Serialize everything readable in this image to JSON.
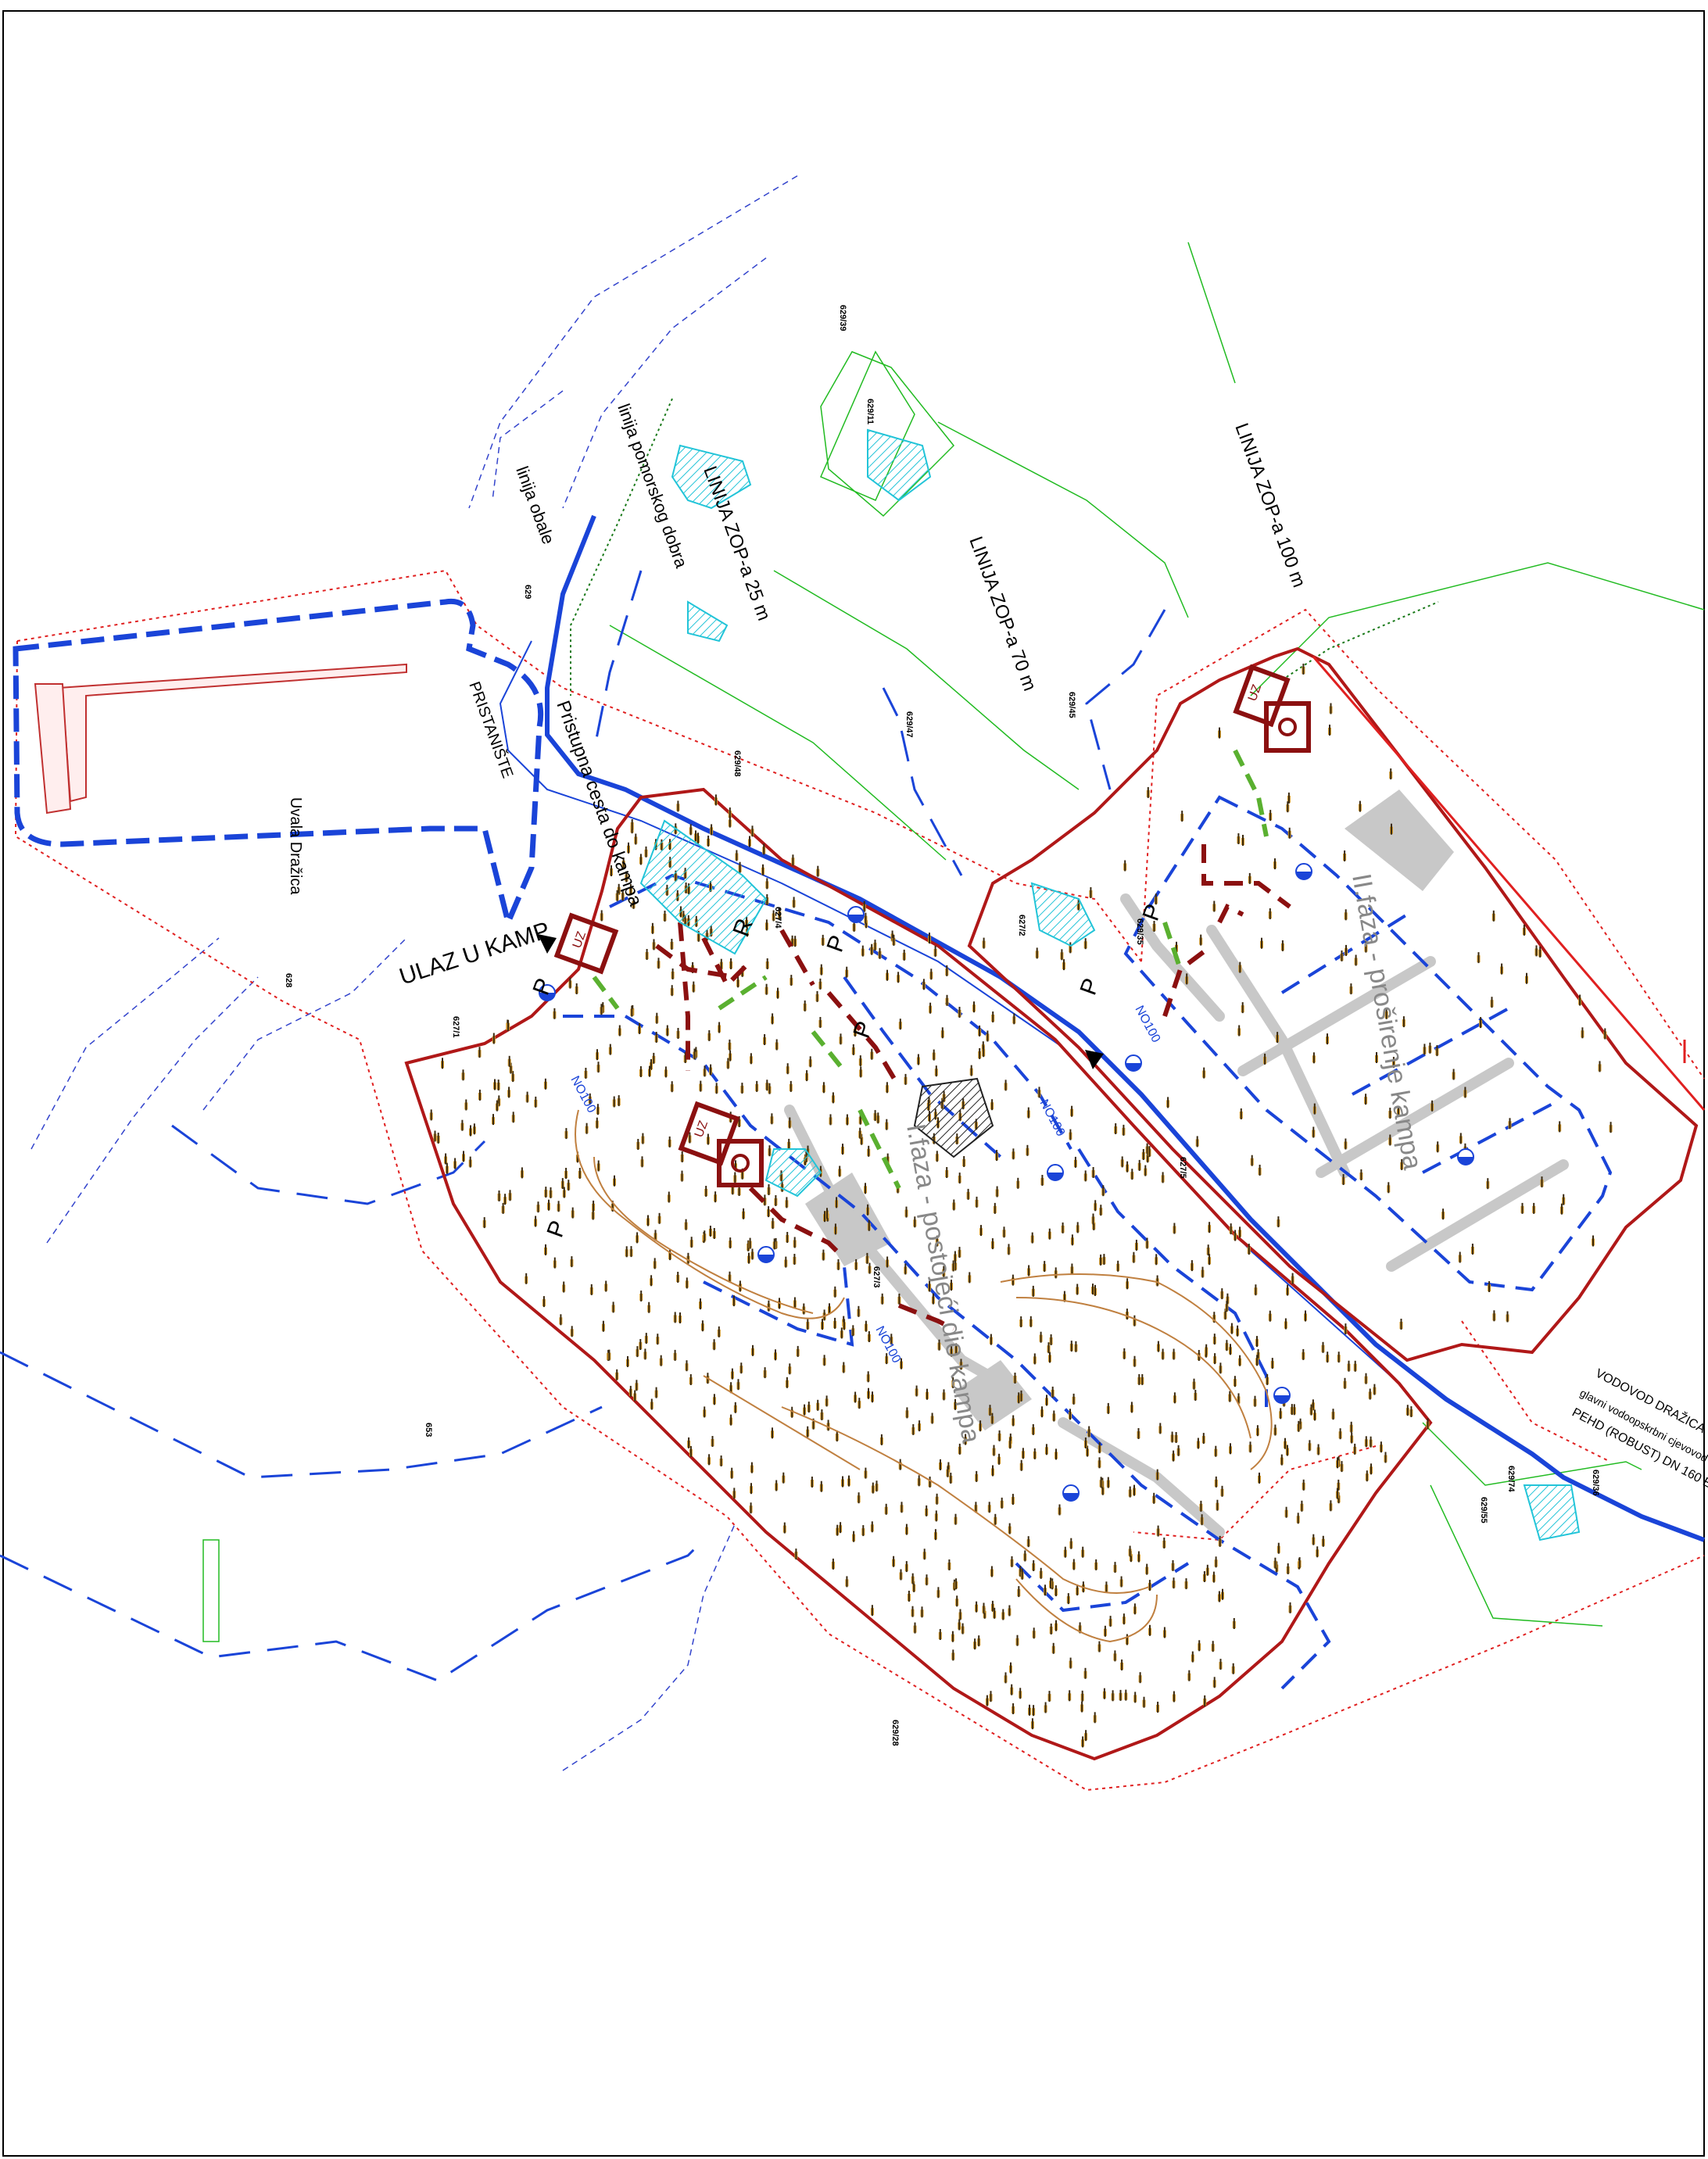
{
  "labels": {
    "linija_obale": "linija obale",
    "linija_pomorskog_dobra": "linija pomorskog dobra",
    "zop25": "LINIJA ZOP-a 25 m",
    "zop70": "LINIJA ZOP-a 70 m",
    "zop100": "LINIJA ZOP-a 100 m",
    "pristaniste": "PRISTANIŠTE",
    "uvala": "Uvala Dražica",
    "pristupna_cesta": "Pristupna cesta do kampa",
    "ulaz": "ULAZ U KAMP",
    "faza1": "I.faza - postojeći dio kampa",
    "faza2": "II.faza - proširenje kampa",
    "vodovod_1": "VODOVOD DRAŽICA",
    "vodovod_2": "glavni vodoopskrbni cjevovod",
    "vodovod_3": "PEHD (ROBUST) DN 160 EN 10"
  },
  "symbols": {
    "parking": "P",
    "parking_r": "R",
    "uz": "UZ",
    "no100": "NO100"
  },
  "parcels": [
    "629/39",
    "629/11",
    "629",
    "629/48",
    "629/47",
    "629/45",
    "627/1",
    "627/4",
    "627/2",
    "629/35",
    "627/5",
    "627/3",
    "629/74",
    "629/55",
    "629/36",
    "653",
    "629/28",
    "628"
  ],
  "colors": {
    "blue_line": "#1a44d8",
    "dark_red": "#8b1010",
    "red_dashed": "#e02020",
    "green": "#22bb22",
    "cyan": "#22c4d8",
    "tree_brown": "#8a5a1a",
    "grey_road": "#c8c8c8"
  }
}
